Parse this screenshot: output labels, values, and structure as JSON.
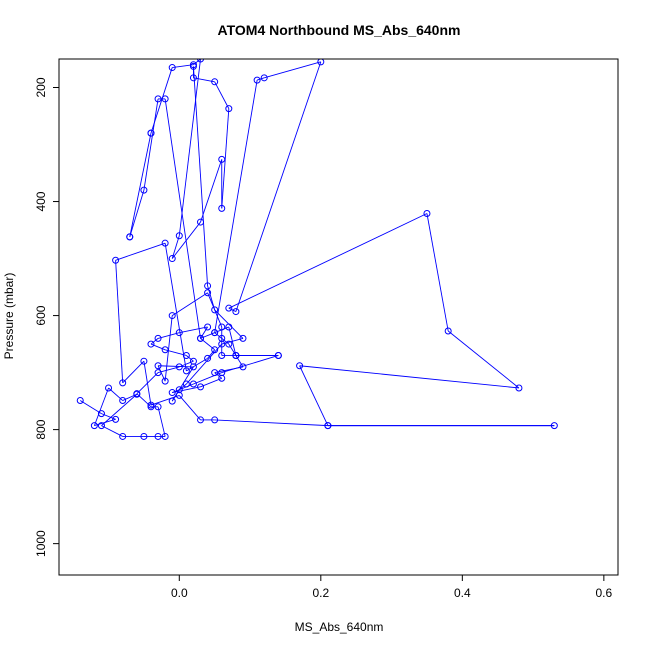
{
  "chart_data": {
    "type": "scatter",
    "title": "ATOM4 Northbound MS_Abs_640nm",
    "xlabel": "MS_Abs_640nm",
    "ylabel": "Pressure (mbar)",
    "xlim": [
      -0.17,
      0.62
    ],
    "ylim": [
      1055,
      150
    ],
    "y_reversed": true,
    "x_ticks": [
      0.0,
      0.2,
      0.4,
      0.6
    ],
    "x_tick_labels": [
      "0.0",
      "0.2",
      "0.4",
      "0.6"
    ],
    "y_ticks": [
      200,
      400,
      600,
      800,
      1000
    ],
    "y_tick_labels": [
      "200",
      "400",
      "600",
      "800",
      "1000"
    ],
    "grid": false,
    "legend": "none",
    "color": "#0000FF",
    "series": [
      {
        "x": [
          -0.14,
          -0.11,
          -0.09,
          -0.12,
          -0.1,
          -0.08,
          -0.06,
          -0.11,
          -0.08,
          -0.05,
          -0.03,
          -0.02,
          -0.03,
          -0.04,
          -0.06,
          -0.03,
          0.0,
          0.02,
          0.01,
          -0.02,
          -0.04,
          -0.03,
          0.0,
          0.04,
          0.03,
          0.05,
          0.07,
          0.08,
          0.14,
          0.06,
          0.02,
          -0.01,
          0.03,
          0.06,
          0.05,
          0.09,
          0.08,
          0.07,
          0.06,
          0.05,
          0.11,
          0.12,
          0.2,
          0.08,
          0.07,
          0.35,
          0.38,
          0.48,
          0.17,
          0.21,
          0.53,
          0.21,
          0.05,
          0.03,
          0.0,
          -0.04,
          -0.05,
          -0.08,
          -0.09,
          -0.02,
          0.01,
          0.04,
          0.05,
          0.03,
          -0.02,
          -0.03,
          -0.05,
          -0.07,
          -0.07,
          -0.04,
          -0.04,
          -0.01,
          0.02,
          0.03,
          0.0,
          -0.01,
          0.03,
          0.06,
          0.06,
          0.07,
          0.05,
          0.02,
          0.02,
          0.04,
          0.05,
          0.09,
          0.06,
          0.01,
          0.0,
          -0.01,
          0.02,
          -0.03,
          -0.02,
          -0.01,
          0.04,
          0.06,
          0.06,
          0.14,
          0.08
        ],
        "y": [
          749,
          772,
          782,
          793,
          727,
          749,
          738,
          793,
          812,
          812,
          812,
          812,
          760,
          760,
          737,
          700,
          690,
          680,
          670,
          660,
          650,
          640,
          630,
          620,
          640,
          630,
          620,
          670,
          670,
          700,
          720,
          735,
          725,
          710,
          700,
          690,
          670,
          650,
          640,
          630,
          187,
          183,
          155,
          593,
          587,
          421,
          627,
          727,
          688,
          793,
          793,
          793,
          783,
          783,
          740,
          757,
          680,
          718,
          503,
          473,
          697,
          675,
          660,
          640,
          220,
          220,
          380,
          462,
          462,
          280,
          280,
          165,
          160,
          150,
          460,
          500,
          436,
          326,
          412,
          237,
          190,
          183,
          163,
          548,
          590,
          640,
          650,
          720,
          730,
          750,
          690,
          688,
          715,
          600,
          560,
          620,
          670,
          670,
          670
        ]
      }
    ]
  }
}
